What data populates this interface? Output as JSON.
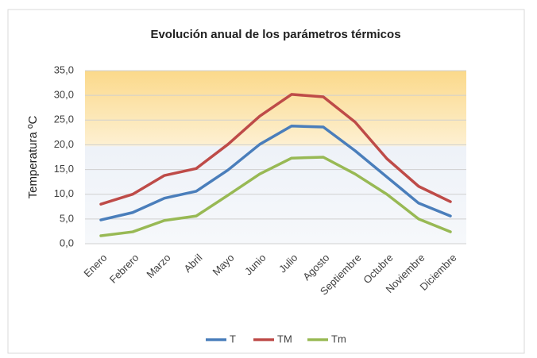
{
  "chart_data": {
    "type": "line",
    "title": "Evolución anual de los parámetros térmicos",
    "y_label": "Temperatura ºC",
    "categories": [
      "Enero",
      "Febrero",
      "Marzo",
      "Abril",
      "Mayo",
      "Junio",
      "Julio",
      "Agosto",
      "Septiembre",
      "Octubre",
      "Noviembre",
      "Diciembre"
    ],
    "series": [
      {
        "name": "T",
        "color": "#4a7ebb",
        "values": [
          4.8,
          6.3,
          9.2,
          10.6,
          14.9,
          20.1,
          23.8,
          23.6,
          18.8,
          13.5,
          8.2,
          5.6
        ]
      },
      {
        "name": "TM",
        "color": "#be4b48",
        "values": [
          8.0,
          10.0,
          13.8,
          15.2,
          20.1,
          25.8,
          30.2,
          29.7,
          24.6,
          17.2,
          11.6,
          8.5
        ]
      },
      {
        "name": "Tm",
        "color": "#98b954",
        "values": [
          1.6,
          2.4,
          4.7,
          5.6,
          9.8,
          14.1,
          17.3,
          17.5,
          14.1,
          10.0,
          5.0,
          2.4
        ]
      }
    ],
    "ylim": [
      0,
      35
    ],
    "yticks": [
      {
        "value": 0,
        "label": "0,0"
      },
      {
        "value": 5,
        "label": "5,0"
      },
      {
        "value": 10,
        "label": "10,0"
      },
      {
        "value": 15,
        "label": "15,0"
      },
      {
        "value": 20,
        "label": "20,0"
      },
      {
        "value": 25,
        "label": "25,0"
      },
      {
        "value": 30,
        "label": "30,0"
      },
      {
        "value": 35,
        "label": "35,0"
      }
    ],
    "grid": true,
    "legend": "bottom"
  }
}
